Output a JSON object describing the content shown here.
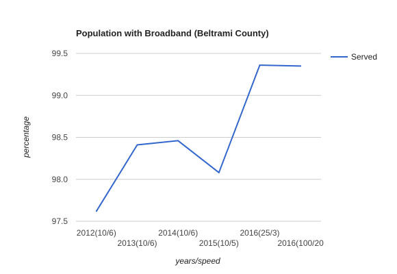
{
  "chart_data": {
    "type": "line",
    "title": "Population with Broadband (Beltrami County)",
    "xlabel": "years/speed",
    "ylabel": "percentage",
    "categories": [
      "2012(10/6)",
      "2013(10/6)",
      "2014(10/6)",
      "2015(10/5)",
      "2016(25/3)",
      "2016(100/20"
    ],
    "series": [
      {
        "name": "Served",
        "values": [
          97.62,
          98.41,
          98.46,
          98.08,
          99.36,
          99.35
        ]
      }
    ],
    "ylim": [
      97.5,
      99.5
    ],
    "yticks": [
      "97.5",
      "98.0",
      "98.5",
      "99.0",
      "99.5"
    ],
    "grid": true,
    "legend": "right",
    "colors": {
      "series": "#3366cc",
      "grid": "#cccccc"
    }
  }
}
